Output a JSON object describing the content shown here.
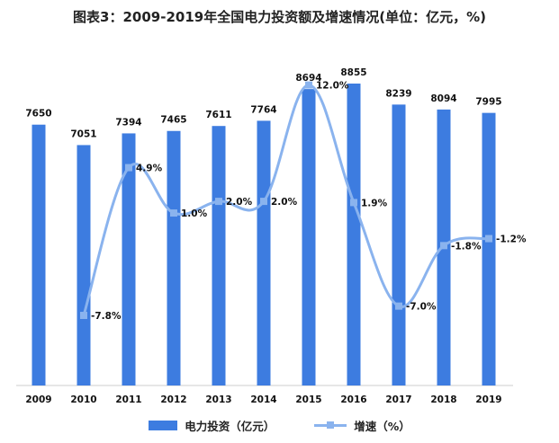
{
  "chart_data": {
    "type": "bar+line",
    "title": "图表3：2009-2019年全国电力投资额及增速情况(单位：亿元，%)",
    "categories": [
      "2009",
      "2010",
      "2011",
      "2012",
      "2013",
      "2014",
      "2015",
      "2016",
      "2017",
      "2018",
      "2019"
    ],
    "series": [
      {
        "name": "电力投资（亿元）",
        "type": "bar",
        "values": [
          7650,
          7051,
          7394,
          7465,
          7611,
          7764,
          8694,
          8855,
          8239,
          8094,
          7995
        ],
        "labels": [
          "7650",
          "7051",
          "7394",
          "7465",
          "7611",
          "7764",
          "8694",
          "8855",
          "8239",
          "8094",
          "7995"
        ],
        "color": "#3d7ce0"
      },
      {
        "name": "增速（%）",
        "type": "line",
        "values": [
          null,
          -7.8,
          4.9,
          1.0,
          2.0,
          2.0,
          12.0,
          1.9,
          -7.0,
          -1.8,
          -1.2
        ],
        "labels": [
          "",
          "-7.8%",
          "4.9%",
          "1.0%",
          "2.0%",
          "2.0%",
          "12.0%",
          "1.9%",
          "-7.0%",
          "-1.8%",
          "-1.2%"
        ],
        "color": "#8ab3ee"
      }
    ],
    "legend_position": "bottom",
    "grid": false
  }
}
